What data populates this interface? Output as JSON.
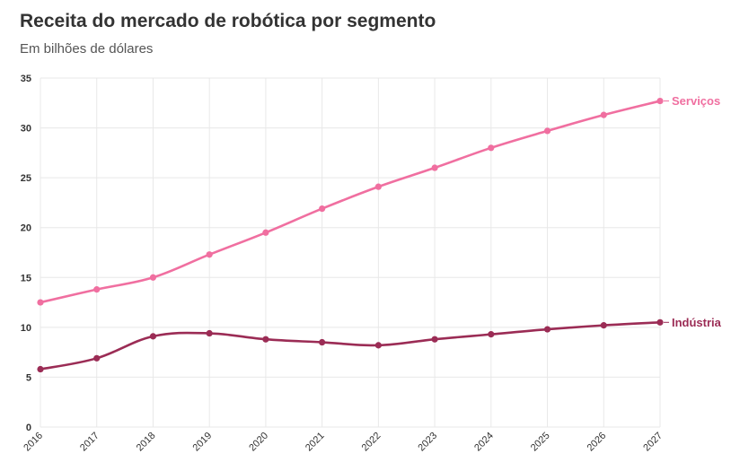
{
  "chart_data": {
    "type": "line",
    "title": "Receita do mercado de robótica por segmento",
    "subtitle": "Em bilhões de dólares",
    "x": [
      "2016",
      "2017",
      "2018",
      "2019",
      "2020",
      "2021",
      "2022",
      "2023",
      "2024",
      "2025",
      "2026",
      "2027"
    ],
    "series": [
      {
        "name": "Serviços",
        "color": "#f06fa0",
        "values": [
          12.5,
          13.8,
          15.0,
          17.3,
          19.5,
          21.9,
          24.1,
          26.0,
          28.0,
          29.7,
          31.3,
          32.7
        ]
      },
      {
        "name": "Indústria",
        "color": "#9b2c55",
        "values": [
          5.8,
          6.9,
          9.1,
          9.4,
          8.8,
          8.5,
          8.2,
          8.8,
          9.3,
          9.8,
          10.2,
          10.5
        ]
      }
    ],
    "yticks": [
      "0",
      "5",
      "10",
      "15",
      "20",
      "25",
      "30",
      "35"
    ],
    "ylim": [
      0,
      35
    ],
    "grid": true,
    "legend": "end-of-line labels"
  }
}
